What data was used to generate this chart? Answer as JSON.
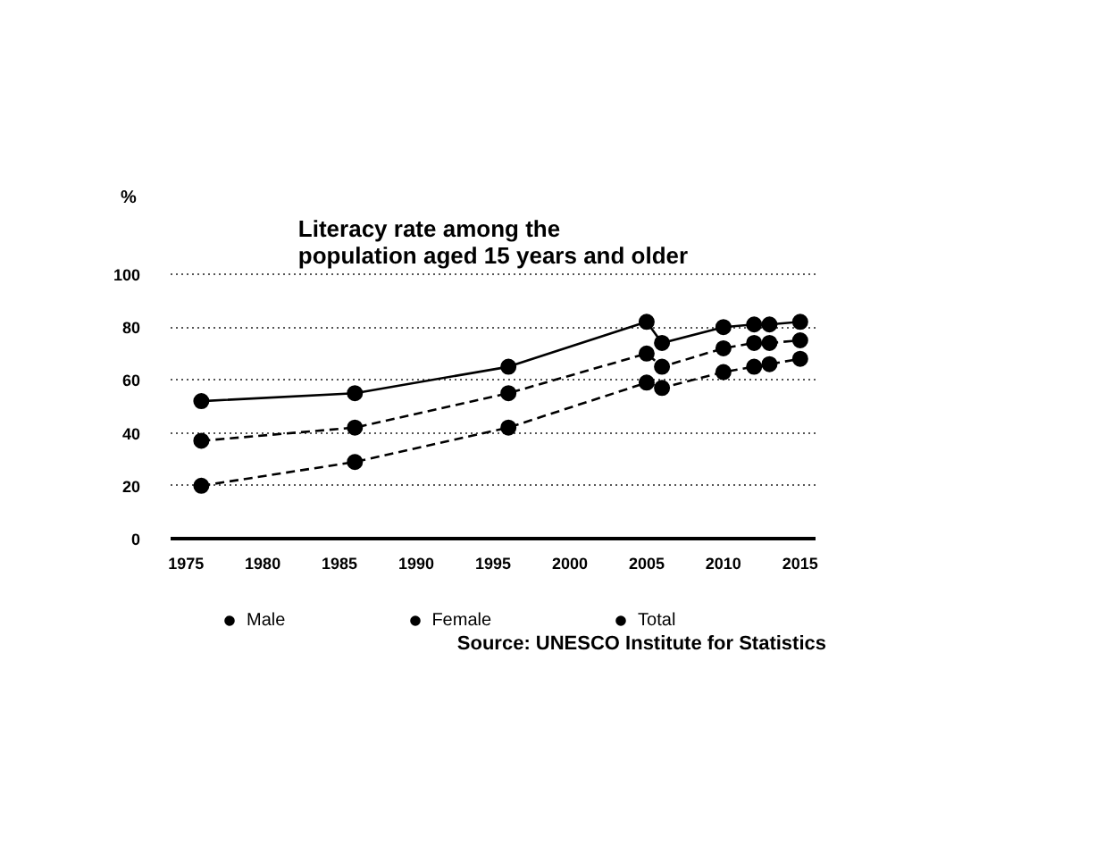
{
  "chart_data": {
    "type": "line",
    "title": "Literacy rate among the\npopulation aged 15 years and older",
    "ylabel": "%",
    "x": [
      1976,
      1986,
      1996,
      2005,
      2006,
      2010,
      2012,
      2013,
      2015
    ],
    "series": [
      {
        "name": "Male",
        "color": "#000000",
        "line_style": "solid",
        "values": [
          52,
          55,
          65,
          82,
          74,
          80,
          81,
          81,
          82
        ]
      },
      {
        "name": "Female",
        "color": "#000000",
        "line_style": "dashed",
        "values": [
          20,
          29,
          42,
          59,
          57,
          63,
          65,
          66,
          68
        ]
      },
      {
        "name": "Total",
        "color": "#000000",
        "line_style": "dashed",
        "values": [
          37,
          42,
          55,
          70,
          65,
          72,
          74,
          74,
          75
        ]
      }
    ],
    "xlim": [
      1974,
      2016
    ],
    "xticks": [
      1975,
      1980,
      1985,
      1990,
      1995,
      2000,
      2005,
      2010,
      2015
    ],
    "ylim": [
      0,
      100
    ],
    "yticks": [
      0,
      20,
      40,
      60,
      80,
      100
    ],
    "grid": "y",
    "legend": "bottom",
    "marker": "circle",
    "annotations": [
      "Source: UNESCO Institute for Statistics"
    ]
  }
}
